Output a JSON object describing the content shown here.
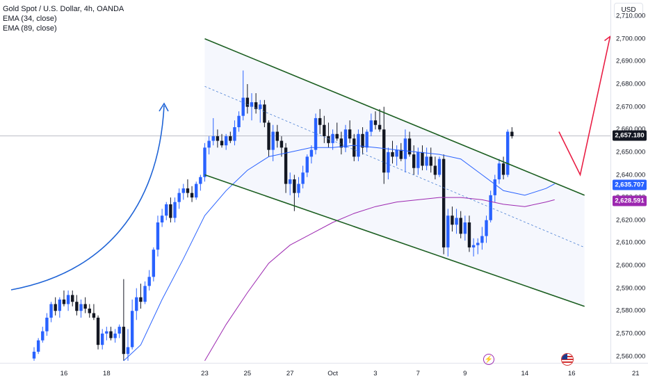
{
  "legend": {
    "symbol": "Gold Spot / U.S. Dollar, 4h, OANDA",
    "ema34": "EMA (34, close)",
    "ema89": "EMA (89, close)"
  },
  "currency": "USD",
  "colors": {
    "up": "#2962ff",
    "down": "#131722",
    "ema34": "#2962ff",
    "ema89": "#9c27b0",
    "channel": "#1b5e20",
    "arrow_curve": "#1e63d6",
    "arrow_red": "#e91e44",
    "last_price_bg": "#131722",
    "ema34_tag": "#2962ff",
    "ema89_tag": "#9c27b0"
  },
  "price_tags": {
    "last": "2,657.180",
    "ema34": "2,635.707",
    "ema89": "2,628.591"
  },
  "events": {
    "dividend_icon": "lightning-icon",
    "us_flag_icon": "us-flag-icon"
  },
  "chart_data": {
    "type": "candlestick",
    "title": "Gold Spot / U.S. Dollar, 4h, OANDA",
    "y_ticks": [
      "2,560.000",
      "2,570.000",
      "2,580.000",
      "2,590.000",
      "2,600.000",
      "2,610.000",
      "2,620.000",
      "2,630.000",
      "2,640.000",
      "2,650.000",
      "2,660.000",
      "2,670.000",
      "2,680.000",
      "2,690.000",
      "2,700.000",
      "2,710.000"
    ],
    "y_tick_values": [
      2560,
      2570,
      2580,
      2590,
      2600,
      2610,
      2620,
      2630,
      2640,
      2650,
      2660,
      2670,
      2680,
      2690,
      2700,
      2710
    ],
    "ylim": [
      2557.5,
      2714
    ],
    "x_ticks": [
      "16",
      "18",
      "23",
      "25",
      "27",
      "Oct",
      "3",
      "7",
      "9",
      "14",
      "16",
      "21"
    ],
    "x_tick_index": [
      7,
      17,
      40,
      50,
      60,
      70,
      80,
      90,
      101,
      115,
      126,
      141
    ],
    "candles": [
      {
        "o": 2559,
        "h": 2564,
        "l": 2558,
        "c": 2562
      },
      {
        "o": 2562,
        "h": 2568,
        "l": 2561,
        "c": 2567
      },
      {
        "o": 2567,
        "h": 2573,
        "l": 2566,
        "c": 2571
      },
      {
        "o": 2571,
        "h": 2579,
        "l": 2569,
        "c": 2577
      },
      {
        "o": 2577,
        "h": 2584,
        "l": 2575,
        "c": 2583
      },
      {
        "o": 2583,
        "h": 2586,
        "l": 2578,
        "c": 2580
      },
      {
        "o": 2580,
        "h": 2586,
        "l": 2577,
        "c": 2585
      },
      {
        "o": 2585,
        "h": 2589,
        "l": 2582,
        "c": 2583
      },
      {
        "o": 2583,
        "h": 2589,
        "l": 2580,
        "c": 2587
      },
      {
        "o": 2587,
        "h": 2589,
        "l": 2582,
        "c": 2584
      },
      {
        "o": 2584,
        "h": 2587,
        "l": 2578,
        "c": 2580
      },
      {
        "o": 2580,
        "h": 2585,
        "l": 2577,
        "c": 2583
      },
      {
        "o": 2583,
        "h": 2586,
        "l": 2579,
        "c": 2581
      },
      {
        "o": 2581,
        "h": 2583,
        "l": 2577,
        "c": 2579
      },
      {
        "o": 2579,
        "h": 2583,
        "l": 2576,
        "c": 2577
      },
      {
        "o": 2577,
        "h": 2578,
        "l": 2563,
        "c": 2565
      },
      {
        "o": 2565,
        "h": 2572,
        "l": 2563,
        "c": 2570
      },
      {
        "o": 2570,
        "h": 2573,
        "l": 2567,
        "c": 2571
      },
      {
        "o": 2571,
        "h": 2573,
        "l": 2567,
        "c": 2568
      },
      {
        "o": 2568,
        "h": 2572,
        "l": 2566,
        "c": 2570
      },
      {
        "o": 2570,
        "h": 2574,
        "l": 2568,
        "c": 2573
      },
      {
        "o": 2573,
        "h": 2594,
        "l": 2558,
        "c": 2561
      },
      {
        "o": 2561,
        "h": 2572,
        "l": 2558,
        "c": 2564
      },
      {
        "o": 2564,
        "h": 2585,
        "l": 2563,
        "c": 2580
      },
      {
        "o": 2580,
        "h": 2590,
        "l": 2576,
        "c": 2586
      },
      {
        "o": 2586,
        "h": 2592,
        "l": 2581,
        "c": 2584
      },
      {
        "o": 2584,
        "h": 2593,
        "l": 2583,
        "c": 2591
      },
      {
        "o": 2591,
        "h": 2598,
        "l": 2589,
        "c": 2595
      },
      {
        "o": 2595,
        "h": 2608,
        "l": 2593,
        "c": 2607
      },
      {
        "o": 2607,
        "h": 2622,
        "l": 2604,
        "c": 2619
      },
      {
        "o": 2619,
        "h": 2625,
        "l": 2617,
        "c": 2622
      },
      {
        "o": 2622,
        "h": 2628,
        "l": 2620,
        "c": 2627
      },
      {
        "o": 2627,
        "h": 2630,
        "l": 2619,
        "c": 2621
      },
      {
        "o": 2621,
        "h": 2630,
        "l": 2619,
        "c": 2628
      },
      {
        "o": 2628,
        "h": 2634,
        "l": 2625,
        "c": 2632
      },
      {
        "o": 2632,
        "h": 2636,
        "l": 2629,
        "c": 2634
      },
      {
        "o": 2634,
        "h": 2638,
        "l": 2630,
        "c": 2632
      },
      {
        "o": 2632,
        "h": 2635,
        "l": 2628,
        "c": 2630
      },
      {
        "o": 2630,
        "h": 2637,
        "l": 2629,
        "c": 2636
      },
      {
        "o": 2636,
        "h": 2640,
        "l": 2633,
        "c": 2639
      },
      {
        "o": 2639,
        "h": 2654,
        "l": 2637,
        "c": 2652
      },
      {
        "o": 2652,
        "h": 2657,
        "l": 2649,
        "c": 2655
      },
      {
        "o": 2655,
        "h": 2665,
        "l": 2653,
        "c": 2657
      },
      {
        "o": 2657,
        "h": 2660,
        "l": 2652,
        "c": 2655
      },
      {
        "o": 2655,
        "h": 2658,
        "l": 2652,
        "c": 2653
      },
      {
        "o": 2653,
        "h": 2658,
        "l": 2651,
        "c": 2657
      },
      {
        "o": 2657,
        "h": 2659,
        "l": 2654,
        "c": 2655
      },
      {
        "o": 2655,
        "h": 2664,
        "l": 2653,
        "c": 2661
      },
      {
        "o": 2661,
        "h": 2668,
        "l": 2659,
        "c": 2666
      },
      {
        "o": 2666,
        "h": 2686,
        "l": 2664,
        "c": 2674
      },
      {
        "o": 2674,
        "h": 2680,
        "l": 2667,
        "c": 2670
      },
      {
        "o": 2670,
        "h": 2676,
        "l": 2664,
        "c": 2672
      },
      {
        "o": 2672,
        "h": 2676,
        "l": 2667,
        "c": 2669
      },
      {
        "o": 2669,
        "h": 2673,
        "l": 2663,
        "c": 2671
      },
      {
        "o": 2671,
        "h": 2673,
        "l": 2661,
        "c": 2663
      },
      {
        "o": 2663,
        "h": 2664,
        "l": 2648,
        "c": 2651
      },
      {
        "o": 2651,
        "h": 2662,
        "l": 2646,
        "c": 2659
      },
      {
        "o": 2659,
        "h": 2662,
        "l": 2652,
        "c": 2655
      },
      {
        "o": 2655,
        "h": 2657,
        "l": 2648,
        "c": 2652
      },
      {
        "o": 2652,
        "h": 2654,
        "l": 2632,
        "c": 2636
      },
      {
        "o": 2636,
        "h": 2641,
        "l": 2631,
        "c": 2638
      },
      {
        "o": 2638,
        "h": 2640,
        "l": 2624,
        "c": 2632
      },
      {
        "o": 2632,
        "h": 2639,
        "l": 2630,
        "c": 2636
      },
      {
        "o": 2636,
        "h": 2644,
        "l": 2634,
        "c": 2641
      },
      {
        "o": 2641,
        "h": 2649,
        "l": 2639,
        "c": 2648
      },
      {
        "o": 2648,
        "h": 2653,
        "l": 2645,
        "c": 2651
      },
      {
        "o": 2651,
        "h": 2667,
        "l": 2649,
        "c": 2665
      },
      {
        "o": 2665,
        "h": 2669,
        "l": 2658,
        "c": 2662
      },
      {
        "o": 2662,
        "h": 2666,
        "l": 2654,
        "c": 2657
      },
      {
        "o": 2657,
        "h": 2663,
        "l": 2652,
        "c": 2654
      },
      {
        "o": 2654,
        "h": 2660,
        "l": 2651,
        "c": 2658
      },
      {
        "o": 2658,
        "h": 2663,
        "l": 2655,
        "c": 2656
      },
      {
        "o": 2656,
        "h": 2659,
        "l": 2649,
        "c": 2652
      },
      {
        "o": 2652,
        "h": 2662,
        "l": 2650,
        "c": 2660
      },
      {
        "o": 2660,
        "h": 2664,
        "l": 2654,
        "c": 2656
      },
      {
        "o": 2656,
        "h": 2658,
        "l": 2646,
        "c": 2648
      },
      {
        "o": 2648,
        "h": 2660,
        "l": 2646,
        "c": 2658
      },
      {
        "o": 2658,
        "h": 2661,
        "l": 2649,
        "c": 2652
      },
      {
        "o": 2652,
        "h": 2660,
        "l": 2650,
        "c": 2659
      },
      {
        "o": 2659,
        "h": 2667,
        "l": 2657,
        "c": 2664
      },
      {
        "o": 2664,
        "h": 2668,
        "l": 2660,
        "c": 2662
      },
      {
        "o": 2662,
        "h": 2669,
        "l": 2659,
        "c": 2660
      },
      {
        "o": 2660,
        "h": 2670,
        "l": 2636,
        "c": 2641
      },
      {
        "o": 2641,
        "h": 2652,
        "l": 2638,
        "c": 2650
      },
      {
        "o": 2650,
        "h": 2655,
        "l": 2645,
        "c": 2648
      },
      {
        "o": 2648,
        "h": 2653,
        "l": 2644,
        "c": 2651
      },
      {
        "o": 2651,
        "h": 2654,
        "l": 2646,
        "c": 2647
      },
      {
        "o": 2647,
        "h": 2660,
        "l": 2641,
        "c": 2656
      },
      {
        "o": 2656,
        "h": 2659,
        "l": 2648,
        "c": 2649
      },
      {
        "o": 2649,
        "h": 2653,
        "l": 2640,
        "c": 2643
      },
      {
        "o": 2643,
        "h": 2652,
        "l": 2640,
        "c": 2650
      },
      {
        "o": 2650,
        "h": 2653,
        "l": 2642,
        "c": 2644
      },
      {
        "o": 2644,
        "h": 2652,
        "l": 2642,
        "c": 2648
      },
      {
        "o": 2648,
        "h": 2652,
        "l": 2641,
        "c": 2644
      },
      {
        "o": 2644,
        "h": 2648,
        "l": 2638,
        "c": 2640
      },
      {
        "o": 2640,
        "h": 2648,
        "l": 2639,
        "c": 2647
      },
      {
        "o": 2647,
        "h": 2649,
        "l": 2605,
        "c": 2608
      },
      {
        "o": 2608,
        "h": 2625,
        "l": 2604,
        "c": 2622
      },
      {
        "o": 2622,
        "h": 2626,
        "l": 2615,
        "c": 2618
      },
      {
        "o": 2618,
        "h": 2625,
        "l": 2614,
        "c": 2621
      },
      {
        "o": 2621,
        "h": 2624,
        "l": 2612,
        "c": 2614
      },
      {
        "o": 2614,
        "h": 2622,
        "l": 2611,
        "c": 2619
      },
      {
        "o": 2619,
        "h": 2622,
        "l": 2606,
        "c": 2608
      },
      {
        "o": 2608,
        "h": 2612,
        "l": 2604,
        "c": 2609
      },
      {
        "o": 2609,
        "h": 2612,
        "l": 2605,
        "c": 2610
      },
      {
        "o": 2610,
        "h": 2617,
        "l": 2607,
        "c": 2613
      },
      {
        "o": 2613,
        "h": 2622,
        "l": 2610,
        "c": 2620
      },
      {
        "o": 2620,
        "h": 2633,
        "l": 2619,
        "c": 2631
      },
      {
        "o": 2631,
        "h": 2640,
        "l": 2628,
        "c": 2638
      },
      {
        "o": 2638,
        "h": 2647,
        "l": 2636,
        "c": 2645
      },
      {
        "o": 2645,
        "h": 2648,
        "l": 2638,
        "c": 2640
      },
      {
        "o": 2640,
        "h": 2660,
        "l": 2639,
        "c": 2659
      },
      {
        "o": 2659,
        "h": 2661,
        "l": 2656,
        "c": 2657
      }
    ],
    "series": [
      {
        "name": "EMA (34, close)",
        "points": [
          [
            21,
            2558
          ],
          [
            25,
            2565
          ],
          [
            30,
            2585
          ],
          [
            35,
            2603
          ],
          [
            40,
            2622
          ],
          [
            45,
            2633
          ],
          [
            50,
            2642
          ],
          [
            55,
            2648
          ],
          [
            60,
            2650
          ],
          [
            65,
            2652
          ],
          [
            70,
            2652
          ],
          [
            75,
            2653
          ],
          [
            80,
            2652
          ],
          [
            85,
            2651
          ],
          [
            90,
            2650
          ],
          [
            95,
            2649
          ],
          [
            100,
            2647
          ],
          [
            105,
            2640
          ],
          [
            110,
            2633
          ],
          [
            115,
            2631
          ],
          [
            120,
            2634
          ],
          [
            122,
            2636
          ]
        ]
      },
      {
        "name": "EMA (89, close)",
        "points": [
          [
            40,
            2558
          ],
          [
            45,
            2574
          ],
          [
            50,
            2588
          ],
          [
            55,
            2601
          ],
          [
            60,
            2609
          ],
          [
            65,
            2614
          ],
          [
            70,
            2619
          ],
          [
            75,
            2623
          ],
          [
            80,
            2626
          ],
          [
            85,
            2628
          ],
          [
            90,
            2629
          ],
          [
            95,
            2630
          ],
          [
            100,
            2630
          ],
          [
            105,
            2629
          ],
          [
            110,
            2627
          ],
          [
            115,
            2626
          ],
          [
            120,
            2628
          ],
          [
            122,
            2629
          ]
        ]
      }
    ],
    "channel": {
      "upper": [
        [
          40,
          2700
        ],
        [
          129,
          2631
        ]
      ],
      "lower": [
        [
          40,
          2640
        ],
        [
          129,
          2582
        ]
      ],
      "mid": [
        [
          40,
          2679
        ],
        [
          129,
          2608
        ]
      ]
    },
    "projection": [
      [
        123,
        2659
      ],
      [
        128,
        2640
      ],
      [
        135,
        2701
      ]
    ],
    "last_price": 2657.18
  }
}
